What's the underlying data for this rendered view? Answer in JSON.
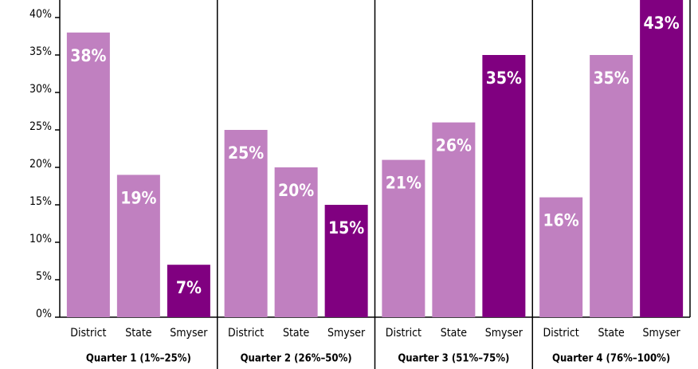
{
  "chart_data": {
    "type": "bar",
    "categories": [
      "Quarter 1 (1%–25%)",
      "Quarter 2 (26%–50%)",
      "Quarter 3 (51%–75%)",
      "Quarter 4 (76%–100%)"
    ],
    "series": [
      {
        "name": "District",
        "color": "#c080c0",
        "values": [
          38,
          25,
          21,
          16
        ],
        "value_labels": [
          "38%",
          "25%",
          "21%",
          "16%"
        ]
      },
      {
        "name": "State",
        "color": "#c080c0",
        "values": [
          19,
          20,
          26,
          35
        ],
        "value_labels": [
          "19%",
          "20%",
          "26%",
          "35%"
        ]
      },
      {
        "name": "Smyser",
        "color": "#800080",
        "values": [
          7,
          15,
          35,
          43
        ],
        "value_labels": [
          "7%",
          "15%",
          "35%",
          "43%"
        ]
      }
    ],
    "ylim": [
      0,
      40
    ],
    "yticks": [
      {
        "value": 0,
        "label": "0%"
      },
      {
        "value": 5,
        "label": "5%"
      },
      {
        "value": 10,
        "label": "10%"
      },
      {
        "value": 15,
        "label": "15%"
      },
      {
        "value": 20,
        "label": "20%"
      },
      {
        "value": 25,
        "label": "25%"
      },
      {
        "value": 30,
        "label": "30%"
      },
      {
        "value": 35,
        "label": "35%"
      },
      {
        "value": 40,
        "label": "40%"
      }
    ]
  }
}
